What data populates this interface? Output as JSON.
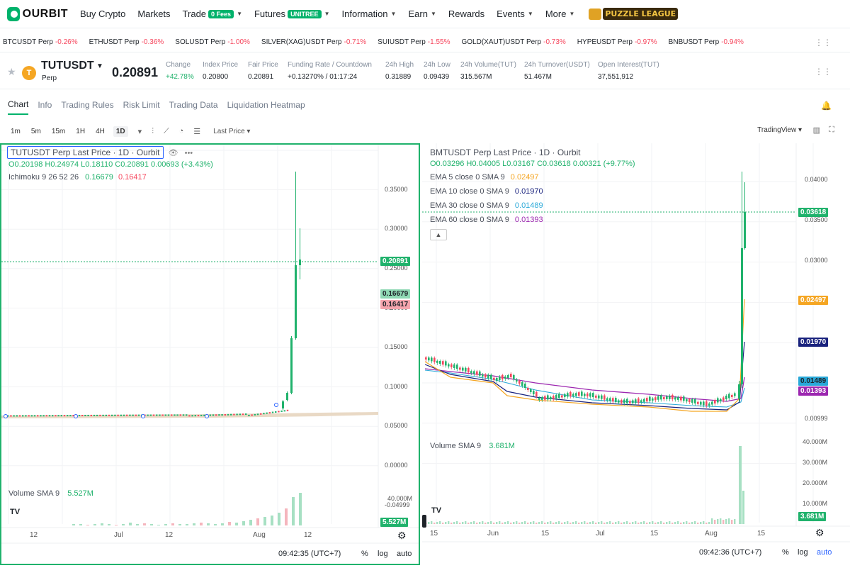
{
  "nav": {
    "logo": "OURBIT",
    "items": [
      {
        "label": "Buy Crypto",
        "badge": "",
        "dropdown": false
      },
      {
        "label": "Markets",
        "badge": "",
        "dropdown": false
      },
      {
        "label": "Trade",
        "badge": "0 Fees",
        "dropdown": true
      },
      {
        "label": "Futures",
        "badge": "UNITREE",
        "dropdown": true
      },
      {
        "label": "Information",
        "badge": "",
        "dropdown": true
      },
      {
        "label": "Earn",
        "badge": "",
        "dropdown": true
      },
      {
        "label": "Rewards",
        "badge": "",
        "dropdown": false
      },
      {
        "label": "Events",
        "badge": "",
        "dropdown": true
      },
      {
        "label": "More",
        "badge": "",
        "dropdown": true
      }
    ],
    "promo": "PUZZLE LEAGUE"
  },
  "ticker": [
    {
      "symbol": "BTCUSDT Perp",
      "change": "-0.26%"
    },
    {
      "symbol": "ETHUSDT Perp",
      "change": "-0.36%"
    },
    {
      "symbol": "SOLUSDT Perp",
      "change": "-1.00%"
    },
    {
      "symbol": "SILVER(XAG)USDT Perp",
      "change": "-0.71%"
    },
    {
      "symbol": "SUIUSDT Perp",
      "change": "-1.55%"
    },
    {
      "symbol": "GOLD(XAUT)USDT Perp",
      "change": "-0.73%"
    },
    {
      "symbol": "HYPEUSDT Perp",
      "change": "-0.97%"
    },
    {
      "symbol": "BNBUSDT Perp",
      "change": "-0.94%"
    }
  ],
  "symbol": {
    "name": "TUTUSDT",
    "coin_letter": "T",
    "sub": "Perp",
    "last_price": "0.20891",
    "stats": [
      {
        "label": "Change",
        "value": "+42.78%",
        "green": true
      },
      {
        "label": "Index Price",
        "value": "0.20800",
        "green": false
      },
      {
        "label": "Fair Price",
        "value": "0.20891",
        "green": false
      },
      {
        "label": "Funding Rate  /  Countdown",
        "value": "+0.13270%  /  01:17:24",
        "green": false
      },
      {
        "label": "24h High",
        "value": "0.31889",
        "green": false
      },
      {
        "label": "24h Low",
        "value": "0.09439",
        "green": false
      },
      {
        "label": "24h Volume(TUT)",
        "value": "315.567M",
        "green": false
      },
      {
        "label": "24h Turnover(USDT)",
        "value": "51.467M",
        "green": false
      },
      {
        "label": "Open Interest(TUT)",
        "value": "37,551,912",
        "green": false
      }
    ]
  },
  "tabs": [
    "Chart",
    "Info",
    "Trading Rules",
    "Risk Limit",
    "Trading Data",
    "Liquidation Heatmap"
  ],
  "toolbar": {
    "intervals": [
      "1m",
      "5m",
      "15m",
      "1H",
      "4H",
      "1D"
    ],
    "active_interval": "1D",
    "price_type": "Last Price",
    "view": "TradingView"
  },
  "left_chart": {
    "title": "TUTUSDT Perp Last Price · 1D · Ourbit",
    "ohlc": "O0.20198  H0.24974  L0.18110  C0.20891  0.00693 (+3.43%)",
    "indicator": "Ichimoku 9 26 52 26",
    "ind_v1": "0.16679",
    "ind_v2": "0.16417",
    "volume_label": "Volume SMA 9",
    "volume_value": "5.527M",
    "price_axis": [
      "0.35000",
      "0.30000",
      "0.25000",
      "0.20000",
      "0.15000",
      "0.10000",
      "0.05000",
      "0.00000",
      "-0.04999"
    ],
    "price_axis_values": [
      0.35,
      0.3,
      0.25,
      0.2,
      0.15,
      0.1,
      0.05,
      0.0,
      -0.04999
    ],
    "vol_axis": [
      "40.000M"
    ],
    "last_pill": "0.20891",
    "pill_a": "0.16679",
    "pill_b": "0.16417",
    "vol_pill": "5.527M",
    "time_axis": [
      "12",
      "Jul",
      "12",
      "Aug",
      "12"
    ],
    "clock": "09:42:35 (UTC+7)",
    "pct": "%",
    "log": "log",
    "auto": "auto"
  },
  "right_chart": {
    "title": "BMTUSDT Perp Last Price · 1D · Ourbit",
    "ohlc": "O0.03296  H0.04005  L0.03167  C0.03618  0.00321 (+9.77%)",
    "emas": [
      {
        "label": "EMA 5 close 0 SMA 9",
        "value": "0.02497",
        "color": "#f5a623"
      },
      {
        "label": "EMA 10 close 0 SMA 9",
        "value": "0.01970",
        "color": "#1a237e"
      },
      {
        "label": "EMA 30 close 0 SMA 9",
        "value": "0.01489",
        "color": "#29a8d8"
      },
      {
        "label": "EMA 60 close 0 SMA 9",
        "value": "0.01393",
        "color": "#9c27b0"
      }
    ],
    "volume_label": "Volume SMA 9",
    "volume_value": "3.681M",
    "price_axis": [
      "0.04000",
      "0.03500",
      "0.03000",
      "0.00999"
    ],
    "price_axis_values": [
      0.04,
      0.035,
      0.03,
      0.00999
    ],
    "vol_axis": [
      "40.000M",
      "30.000M",
      "20.000M",
      "10.000M"
    ],
    "last_pill": "0.03618",
    "vol_pill": "3.681M",
    "time_axis": [
      "15",
      "Jun",
      "15",
      "Jul",
      "15",
      "Aug",
      "15"
    ],
    "clock": "09:42:36 (UTC+7)",
    "pct": "%",
    "log": "log",
    "auto": "auto"
  },
  "colors": {
    "up": "#20b26c",
    "down": "#f6465d",
    "accent": "#00b26b"
  }
}
